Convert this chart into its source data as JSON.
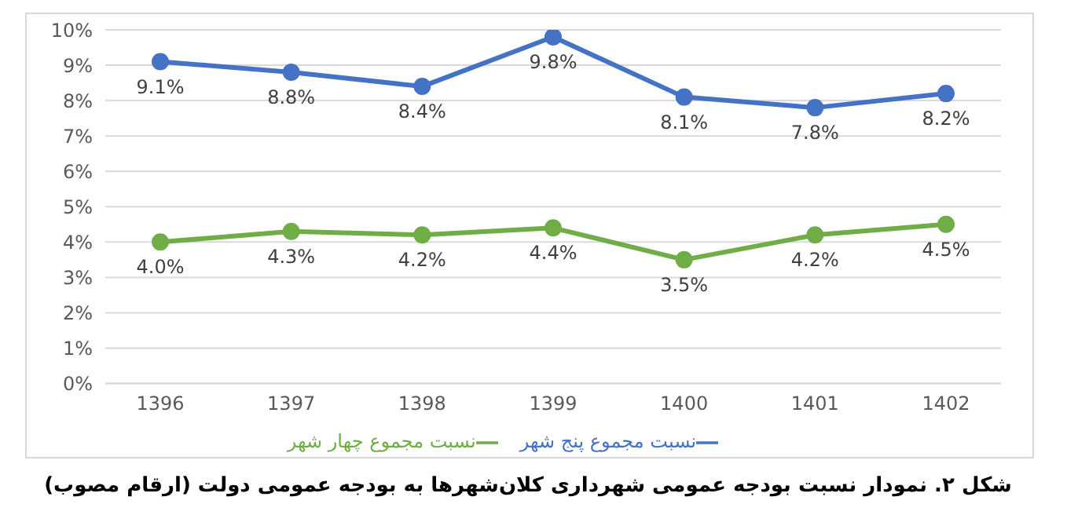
{
  "chart_data": {
    "type": "line",
    "title": "شکل ۲. نمودار نسبت بودجه عمومی شهرداری کلان‌شهرها به بودجه عمومی دولت (ارقام مصوب)",
    "categories": [
      "1396",
      "1397",
      "1398",
      "1399",
      "1400",
      "1401",
      "1402"
    ],
    "series": [
      {
        "name": "نسبت مجموع پنج شهر",
        "color": "#4472c4",
        "values": [
          9.1,
          8.8,
          8.4,
          9.8,
          8.1,
          7.8,
          8.2
        ],
        "value_labels": [
          "9.1%",
          "8.8%",
          "8.4%",
          "9.8%",
          "8.1%",
          "7.8%",
          "8.2%"
        ]
      },
      {
        "name": "نسبت مجموع چهار شهر",
        "color": "#70ad47",
        "values": [
          4.0,
          4.3,
          4.2,
          4.4,
          3.5,
          4.2,
          4.5
        ],
        "value_labels": [
          "4.0%",
          "4.3%",
          "4.2%",
          "4.4%",
          "3.5%",
          "4.2%",
          "4.5%"
        ]
      }
    ],
    "ylim": [
      0,
      10
    ],
    "yticks": [
      {
        "value": 0,
        "label": "0%"
      },
      {
        "value": 1,
        "label": "1%"
      },
      {
        "value": 2,
        "label": "2%"
      },
      {
        "value": 3,
        "label": "3%"
      },
      {
        "value": 4,
        "label": "4%"
      },
      {
        "value": 5,
        "label": "5%"
      },
      {
        "value": 6,
        "label": "6%"
      },
      {
        "value": 7,
        "label": "7%"
      },
      {
        "value": 8,
        "label": "8%"
      },
      {
        "value": 9,
        "label": "9%"
      },
      {
        "value": 10,
        "label": "10%"
      }
    ],
    "grid": "y",
    "legend": "bottom",
    "marker": "circle",
    "line_style": "solid"
  }
}
